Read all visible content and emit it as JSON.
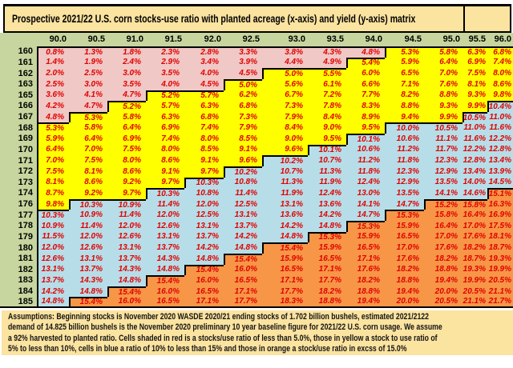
{
  "page": {
    "title": "Prospective 2021/22 U.S. corn stocks-use ratio with planted acreage (x-axis) and yield (y-axis) matrix"
  },
  "assumptions": {
    "lines": [
      "Assumptions:  Beginning stocks is November 2020 WASDE 2020/21 ending stocks of 1.702 billion bushels, estimated 2021/2122",
      "demand of 14.825 billion bushels is the November 2020 preliminary 10 year baseline figure for 2021/22 U.S. corn usage. We assume",
      "a 92% harvested to planted ratio. Cells  shaded in red is a stocks/use ratio of less than 5.0%, those in yellow a stock to use ratio of",
      "5% to less than 10%, cells in blue a ratio of 10% to less than 15% and those in orange a stock/use ratio in excss of 15.0%"
    ]
  },
  "colors": {
    "title_bg": "#fbe3a0",
    "header_bg": "#c6d69e",
    "red_bg": "#f0c8c5",
    "yellow_bg": "#ffff00",
    "blue_bg": "#b7dee8",
    "orange_bg": "#f79646",
    "value_text": "#e00000",
    "border": "#000000"
  },
  "chart_data": {
    "type": "heatmap",
    "title": "Prospective 2021/22 U.S. corn stocks-use ratio with planted acreage (x-axis) and yield (y-axis) matrix",
    "xlabel": "planted acreage (x-axis)",
    "ylabel": "yield (y-axis)",
    "unit": "%",
    "x_categories": [
      "90.0",
      "90.5",
      "91.0",
      "91.5",
      "92.0",
      "92.5",
      "93.0",
      "93.5",
      "94.0",
      "94.5",
      "95.0",
      "95.5",
      "96.0"
    ],
    "y_categories": [
      "160",
      "161",
      "162",
      "163",
      "165",
      "166",
      "167",
      "168",
      "169",
      "170",
      "171",
      "172",
      "173",
      "174",
      "176",
      "177",
      "178",
      "179",
      "180",
      "181",
      "182",
      "183",
      "184",
      "185"
    ],
    "values": [
      [
        0.8,
        1.3,
        1.8,
        2.3,
        2.8,
        3.3,
        3.8,
        4.3,
        4.8,
        5.3,
        5.8,
        6.3,
        6.8
      ],
      [
        1.4,
        1.9,
        2.4,
        2.9,
        3.4,
        3.9,
        4.4,
        4.9,
        5.4,
        5.9,
        6.4,
        6.9,
        7.4
      ],
      [
        2.0,
        2.5,
        3.0,
        3.5,
        4.0,
        4.5,
        5.0,
        5.5,
        6.0,
        6.5,
        7.0,
        7.5,
        8.0
      ],
      [
        2.5,
        3.0,
        3.5,
        4.0,
        4.5,
        5.0,
        5.6,
        6.1,
        6.6,
        7.1,
        7.6,
        8.1,
        8.6
      ],
      [
        3.6,
        4.1,
        4.7,
        5.2,
        5.7,
        6.2,
        6.7,
        7.2,
        7.7,
        8.2,
        8.8,
        9.3,
        9.8
      ],
      [
        4.2,
        4.7,
        5.2,
        5.7,
        6.3,
        6.8,
        7.3,
        7.8,
        8.3,
        8.8,
        9.3,
        9.9,
        10.4
      ],
      [
        4.8,
        5.3,
        5.8,
        6.3,
        6.8,
        7.3,
        7.9,
        8.4,
        8.9,
        9.4,
        9.9,
        10.5,
        11.0
      ],
      [
        5.3,
        5.8,
        6.4,
        6.9,
        7.4,
        7.9,
        8.4,
        9.0,
        9.5,
        10.0,
        10.5,
        11.0,
        11.6
      ],
      [
        5.9,
        6.4,
        6.9,
        7.4,
        8.0,
        8.5,
        9.0,
        9.5,
        10.1,
        10.6,
        11.1,
        11.6,
        12.2
      ],
      [
        6.4,
        7.0,
        7.5,
        8.0,
        8.5,
        9.1,
        9.6,
        10.1,
        10.6,
        11.2,
        11.7,
        12.2,
        12.8
      ],
      [
        7.0,
        7.5,
        8.0,
        8.6,
        9.1,
        9.6,
        10.2,
        10.7,
        11.2,
        11.8,
        12.3,
        12.8,
        13.4
      ],
      [
        7.5,
        8.1,
        8.6,
        9.1,
        9.7,
        10.2,
        10.7,
        11.3,
        11.8,
        12.3,
        12.9,
        13.4,
        13.9
      ],
      [
        8.1,
        8.6,
        9.2,
        9.7,
        10.3,
        10.8,
        11.3,
        11.9,
        12.4,
        12.9,
        13.5,
        14.0,
        14.5
      ],
      [
        8.7,
        9.2,
        9.7,
        10.3,
        10.8,
        11.4,
        11.9,
        12.4,
        13.0,
        13.5,
        14.1,
        14.6,
        15.1
      ],
      [
        9.8,
        10.3,
        10.9,
        11.4,
        12.0,
        12.5,
        13.1,
        13.6,
        14.1,
        14.7,
        15.2,
        15.8,
        16.3
      ],
      [
        10.3,
        10.9,
        11.4,
        12.0,
        12.5,
        13.1,
        13.6,
        14.2,
        14.7,
        15.3,
        15.8,
        16.4,
        16.9
      ],
      [
        10.9,
        11.4,
        12.0,
        12.6,
        13.1,
        13.7,
        14.2,
        14.8,
        15.3,
        15.9,
        16.4,
        17.0,
        17.5
      ],
      [
        11.5,
        12.0,
        12.6,
        13.1,
        13.7,
        14.2,
        14.8,
        15.3,
        15.9,
        16.5,
        17.0,
        17.6,
        18.1
      ],
      [
        12.0,
        12.6,
        13.1,
        13.7,
        14.2,
        14.8,
        15.4,
        15.9,
        16.5,
        17.0,
        17.6,
        18.2,
        18.7
      ],
      [
        12.6,
        13.1,
        13.7,
        14.3,
        14.8,
        15.4,
        15.9,
        16.5,
        17.1,
        17.6,
        18.2,
        18.7,
        19.3
      ],
      [
        13.1,
        13.7,
        14.3,
        14.8,
        15.4,
        16.0,
        16.5,
        17.1,
        17.6,
        18.2,
        18.8,
        19.3,
        19.9
      ],
      [
        13.7,
        14.3,
        14.8,
        15.4,
        16.0,
        16.5,
        17.1,
        17.7,
        18.2,
        18.8,
        19.4,
        19.9,
        20.5
      ],
      [
        14.2,
        14.8,
        15.4,
        16.0,
        16.5,
        17.1,
        17.7,
        18.2,
        18.8,
        19.4,
        20.0,
        20.5,
        21.1
      ],
      [
        14.8,
        15.4,
        16.0,
        16.5,
        17.1,
        17.7,
        18.3,
        18.8,
        19.4,
        20.0,
        20.5,
        21.1,
        21.7
      ]
    ],
    "color_legend": [
      {
        "color_name": "red",
        "rule": "stocks/use ratio of less than 5.0%"
      },
      {
        "color_name": "yellow",
        "rule": "5% to less than 10%"
      },
      {
        "color_name": "blue",
        "rule": "10% to less than 15%"
      },
      {
        "color_name": "orange",
        "rule": "in excess of 15.0%"
      }
    ],
    "grid": false,
    "legend_position": "footnote"
  }
}
